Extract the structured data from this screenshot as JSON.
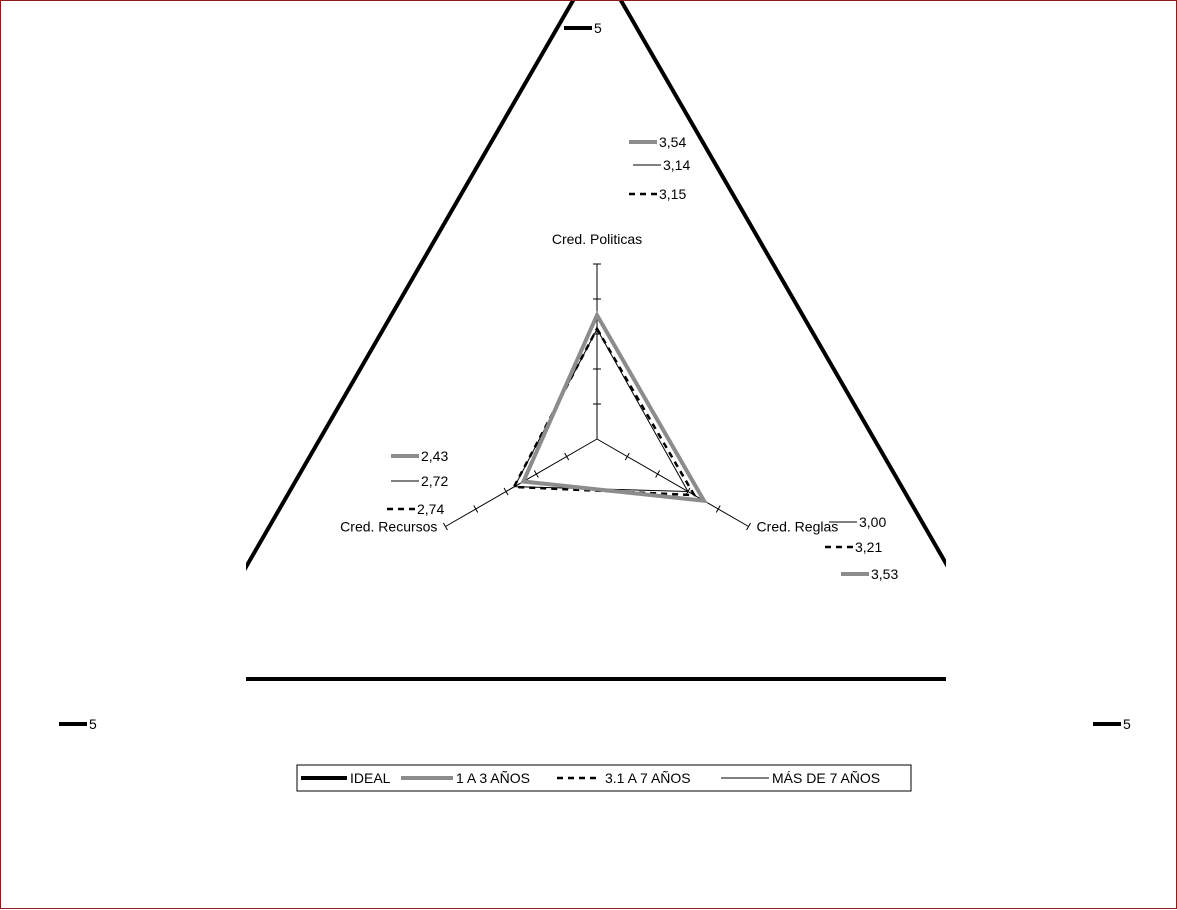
{
  "chart_data": {
    "type": "radar",
    "axes": [
      "Cred. Politicas",
      "Cred. Reglas",
      "Cred. Recursos"
    ],
    "rmax": 5,
    "tick_labels": [
      "5",
      "5",
      "5"
    ],
    "series": [
      {
        "name": "IDEAL",
        "values": [
          5,
          5,
          5
        ],
        "labels": [
          "5",
          "5",
          "5"
        ],
        "color": "#000000",
        "width": 4,
        "dash": ""
      },
      {
        "name": "1 A 3 AÑOS",
        "values": [
          3.54,
          3.53,
          2.43
        ],
        "labels": [
          "3,54",
          "3,53",
          "2,43"
        ],
        "color": "#8c8c8c",
        "width": 4,
        "dash": ""
      },
      {
        "name": "3.1 A 7 AÑOS",
        "values": [
          3.15,
          3.21,
          2.74
        ],
        "labels": [
          "3,15",
          "3,21",
          "2,74"
        ],
        "color": "#000000",
        "width": 2.5,
        "dash": "6,5"
      },
      {
        "name": "MÁS DE 7 AÑOS",
        "values": [
          3.14,
          3.0,
          2.72
        ],
        "labels": [
          "3,14",
          "3,00",
          "2,72"
        ],
        "color": "#000000",
        "width": 1,
        "dash": ""
      }
    ],
    "legend_position": "bottom"
  }
}
